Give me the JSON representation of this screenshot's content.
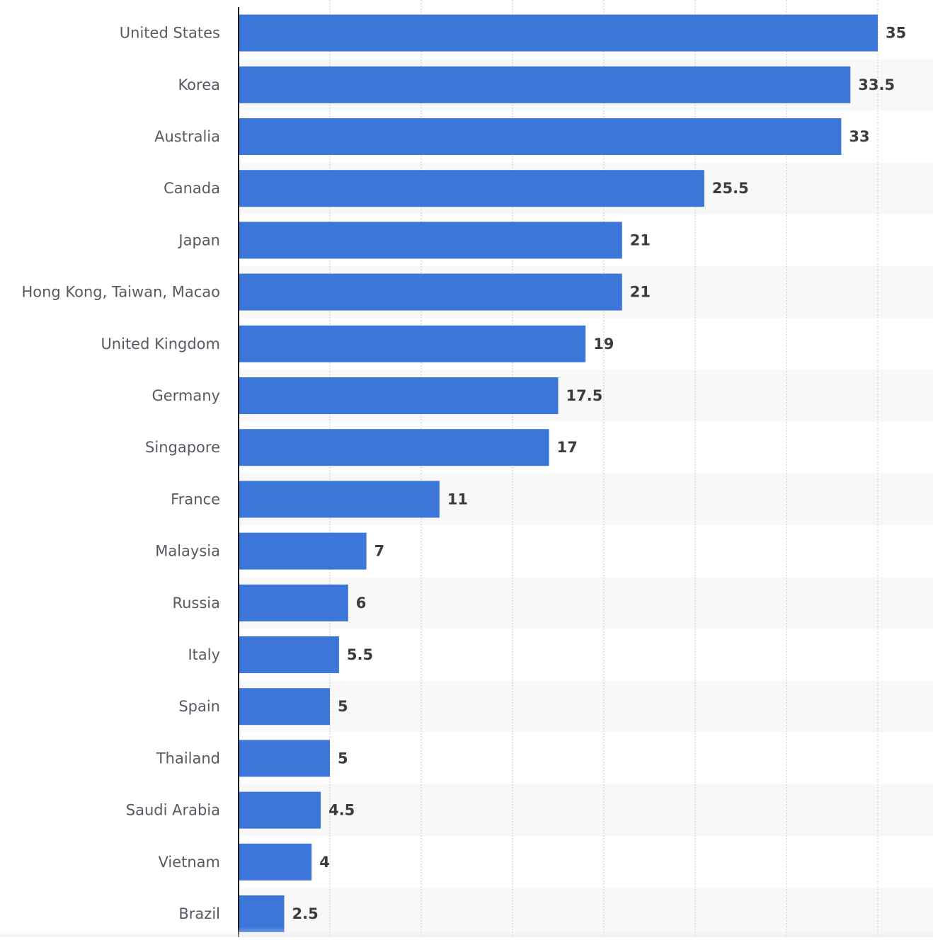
{
  "chart_data": {
    "type": "bar",
    "orientation": "horizontal",
    "categories": [
      "United States",
      "Korea",
      "Australia",
      "Canada",
      "Japan",
      "Hong Kong, Taiwan, Macao",
      "United Kingdom",
      "Germany",
      "Singapore",
      "France",
      "Malaysia",
      "Russia",
      "Italy",
      "Spain",
      "Thailand",
      "Saudi Arabia",
      "Vietnam",
      "Brazil"
    ],
    "values": [
      35,
      33.5,
      33,
      25.5,
      21,
      21,
      19,
      17.5,
      17,
      11,
      7,
      6,
      5.5,
      5,
      5,
      4.5,
      4,
      2.5
    ],
    "value_labels": [
      "35",
      "33.5",
      "33",
      "25.5",
      "21",
      "21",
      "19",
      "17.5",
      "17",
      "11",
      "7",
      "6",
      "5.5",
      "5",
      "5",
      "4.5",
      "4",
      "2.5"
    ],
    "title": "",
    "xlabel": "",
    "ylabel": "",
    "xlim": [
      0,
      35
    ],
    "grid_step": 5,
    "grid": "vertical dotted",
    "bar_color": "#3b76d8",
    "stripe_color": "#f8f8f8"
  }
}
